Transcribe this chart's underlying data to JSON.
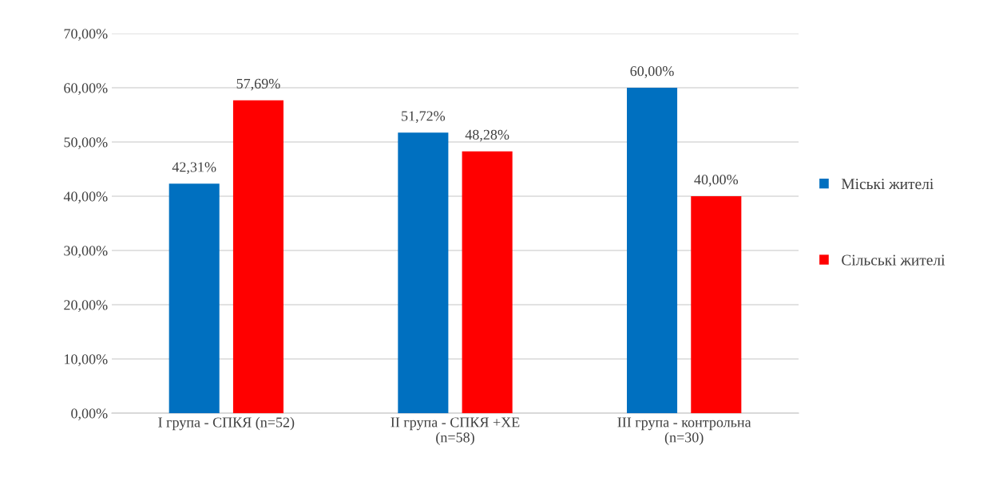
{
  "chart_data": {
    "type": "bar",
    "categories": [
      "I група - СПКЯ (n=52)",
      "II група - СПКЯ +ХЕ\n(n=58)",
      "III група - контрольна\n(n=30)"
    ],
    "series": [
      {
        "name": "Міські жителі",
        "color": "#0070c0",
        "values": [
          42.31,
          51.72,
          60.0
        ],
        "value_labels": [
          "42,31%",
          "51,72%",
          "60,00%"
        ]
      },
      {
        "name": "Сільські жителі",
        "color": "#ff0000",
        "values": [
          57.69,
          48.28,
          40.0
        ],
        "value_labels": [
          "57,69%",
          "48,28%",
          "40,00%"
        ]
      }
    ],
    "ylim": [
      0,
      70
    ],
    "yticks": [
      {
        "value": 0,
        "label": "0,00%"
      },
      {
        "value": 10,
        "label": "10,00%"
      },
      {
        "value": 20,
        "label": "20,00%"
      },
      {
        "value": 30,
        "label": "30,00%"
      },
      {
        "value": 40,
        "label": "40,00%"
      },
      {
        "value": 50,
        "label": "50,00%"
      },
      {
        "value": 60,
        "label": "60,00%"
      },
      {
        "value": 70,
        "label": "70,00%"
      }
    ],
    "grid": "y",
    "legend": "right"
  }
}
